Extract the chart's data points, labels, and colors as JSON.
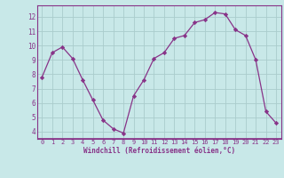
{
  "x": [
    0,
    1,
    2,
    3,
    4,
    5,
    6,
    7,
    8,
    9,
    10,
    11,
    12,
    13,
    14,
    15,
    16,
    17,
    18,
    19,
    20,
    21,
    22,
    23
  ],
  "y": [
    7.8,
    9.5,
    9.9,
    9.1,
    7.6,
    6.2,
    4.8,
    4.2,
    3.9,
    6.5,
    7.6,
    9.1,
    9.5,
    10.5,
    10.7,
    11.6,
    11.8,
    12.3,
    12.2,
    11.1,
    10.7,
    9.0,
    5.4,
    4.6
  ],
  "line_color": "#883388",
  "marker": "D",
  "marker_size": 2.2,
  "bg_color": "#c8e8e8",
  "grid_color": "#aacccc",
  "xlabel": "Windchill (Refroidissement éolien,°C)",
  "xlabel_color": "#883388",
  "tick_color": "#883388",
  "ylim": [
    3.5,
    12.8
  ],
  "xlim": [
    -0.5,
    23.5
  ],
  "yticks": [
    4,
    5,
    6,
    7,
    8,
    9,
    10,
    11,
    12
  ],
  "xticks": [
    0,
    1,
    2,
    3,
    4,
    5,
    6,
    7,
    8,
    9,
    10,
    11,
    12,
    13,
    14,
    15,
    16,
    17,
    18,
    19,
    20,
    21,
    22,
    23
  ],
  "spine_color": "#883388",
  "axis_bg_color": "#c8e8e8"
}
